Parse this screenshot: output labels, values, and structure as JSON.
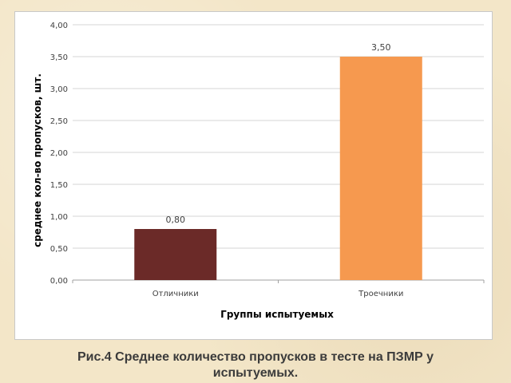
{
  "chart_data": {
    "type": "bar",
    "categories": [
      "Отличники",
      "Троечники"
    ],
    "values": [
      0.8,
      3.5
    ],
    "value_labels": [
      "0,80",
      "3,50"
    ],
    "bar_colors": [
      "#6b2a28",
      "#f6994f"
    ],
    "ylabel": "среднее кол-во пропусков, шт.",
    "xlabel": "Группы испытуемых",
    "ylim": [
      0,
      4
    ],
    "y_ticks": [
      0,
      0.5,
      1,
      1.5,
      2,
      2.5,
      3,
      3.5,
      4
    ],
    "y_tick_labels": [
      "0,00",
      "0,50",
      "1,00",
      "1,50",
      "2,00",
      "2,50",
      "3,00",
      "3,50",
      "4,00"
    ],
    "grid": true,
    "legend": "none"
  },
  "caption": {
    "line1": "Рис.4 Среднее количество пропусков в тесте на ПЗМР у",
    "line2": "испытуемых."
  },
  "colors": {
    "background": "#f3e6c8",
    "gridline": "#d4d4d4",
    "text": "#3b3b3b"
  }
}
